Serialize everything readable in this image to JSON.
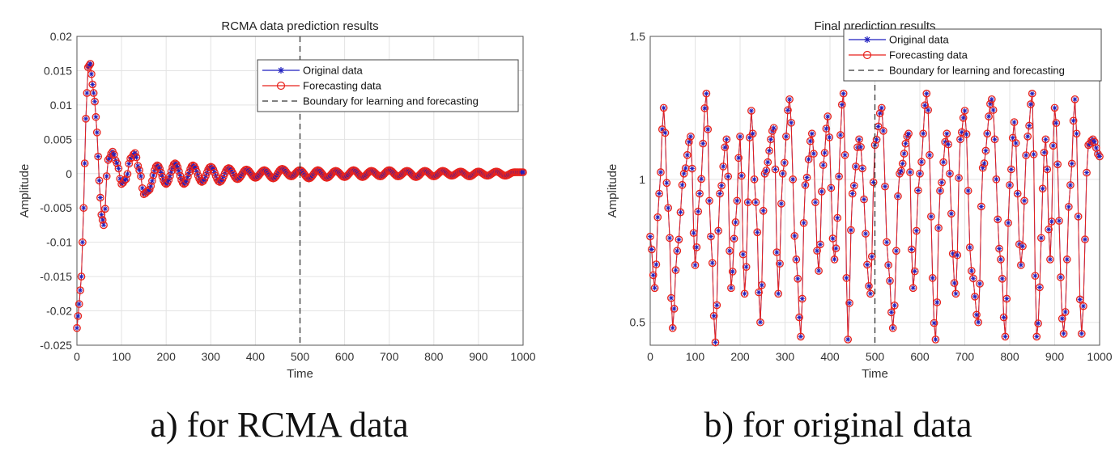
{
  "captions": {
    "a": "a)  for  RCMA  data",
    "b": "b)  for  original  data"
  },
  "chart_data": [
    {
      "type": "line",
      "title": "RCMA data prediction results",
      "xlabel": "Time",
      "ylabel": "Amplitude",
      "xlim": [
        0,
        1000
      ],
      "ylim": [
        -0.025,
        0.02
      ],
      "xticks": [
        "0",
        "100",
        "200",
        "300",
        "400",
        "500",
        "600",
        "700",
        "800",
        "900",
        "1000"
      ],
      "yticks": [
        "0.02",
        "0.015",
        "0.01",
        "0.005",
        "0",
        "-0.005",
        "-0.01",
        "-0.015",
        "-0.02",
        "-0.025"
      ],
      "grid": true,
      "legend_position": "top-right",
      "boundary_x": 500,
      "series": [
        {
          "name": "Original data",
          "color": "#1f1fbf",
          "marker": "asterisk",
          "line": "solid"
        },
        {
          "name": "Forecasting data",
          "color": "#e8221c",
          "marker": "circle",
          "line": "solid"
        },
        {
          "name": "Boundary for learning and forecasting",
          "color": "#333333",
          "line": "dashed"
        }
      ],
      "x": [
        0,
        5,
        10,
        15,
        20,
        25,
        30,
        35,
        40,
        45,
        50,
        55,
        60,
        70,
        80,
        90,
        100,
        110,
        120,
        130,
        140,
        150,
        160,
        180,
        200,
        220,
        240,
        260,
        280,
        300,
        320,
        340,
        360,
        380,
        400,
        420,
        440,
        460,
        480,
        500,
        520,
        540,
        560,
        580,
        600,
        620,
        640,
        660,
        680,
        700,
        720,
        740,
        760,
        780,
        800,
        820,
        840,
        860,
        880,
        900,
        920,
        940,
        960,
        980,
        1000
      ],
      "y": [
        -0.0225,
        -0.019,
        -0.015,
        -0.005,
        0.008,
        0.0155,
        0.016,
        0.013,
        0.0105,
        0.006,
        -0.001,
        -0.006,
        -0.0075,
        0.002,
        0.0032,
        0.0015,
        -0.0015,
        -0.0008,
        0.0022,
        0.003,
        0.0005,
        -0.003,
        -0.0025,
        0.0012,
        -0.0015,
        0.0015,
        -0.0015,
        0.0012,
        -0.0012,
        0.001,
        -0.0012,
        0.0008,
        -0.0008,
        0.0006,
        -0.0006,
        0.0005,
        -0.0007,
        0.0007,
        -0.0004,
        0.0005,
        -0.0007,
        0.0005,
        -0.0006,
        0.0004,
        -0.0005,
        0.0005,
        -0.0005,
        0.0004,
        -0.0004,
        0.0005,
        -0.0004,
        0.0004,
        -0.0005,
        0.0004,
        -0.0004,
        0.0004,
        -0.0003,
        0.0003,
        -0.0004,
        0.0003,
        -0.0003,
        0.0003,
        -0.0003,
        0.0002,
        0.0002
      ]
    },
    {
      "type": "line",
      "title": "Final prediction results",
      "xlabel": "Time",
      "ylabel": "Amplitude",
      "xlim": [
        0,
        1000
      ],
      "ylim": [
        0.42,
        1.5
      ],
      "xticks": [
        "0",
        "100",
        "200",
        "300",
        "400",
        "500",
        "600",
        "700",
        "800",
        "900",
        "1000"
      ],
      "yticks": [
        "1.5",
        "1",
        "0.5"
      ],
      "grid": true,
      "legend_position": "top-right",
      "boundary_x": 500,
      "series": [
        {
          "name": "Original data",
          "color": "#1f1fbf",
          "marker": "asterisk",
          "line": "solid"
        },
        {
          "name": "Forecasting data",
          "color": "#e8221c",
          "marker": "circle",
          "line": "solid"
        },
        {
          "name": "Boundary for learning and forecasting",
          "color": "#333333",
          "line": "dashed"
        }
      ],
      "x": [
        0,
        10,
        20,
        30,
        40,
        50,
        60,
        75,
        90,
        100,
        110,
        125,
        135,
        145,
        155,
        170,
        180,
        190,
        200,
        210,
        225,
        235,
        245,
        255,
        275,
        285,
        295,
        310,
        325,
        335,
        345,
        360,
        375,
        385,
        395,
        410,
        430,
        440,
        450,
        465,
        490,
        500,
        515,
        530,
        540,
        555,
        575,
        585,
        600,
        615,
        635,
        645,
        660,
        680,
        690,
        700,
        715,
        730,
        740,
        760,
        780,
        790,
        800,
        810,
        825,
        840,
        850,
        860,
        880,
        890,
        900,
        920,
        935,
        945,
        960,
        975,
        985,
        1000
      ],
      "y": [
        0.8,
        0.62,
        0.95,
        1.25,
        0.9,
        0.48,
        0.75,
        1.02,
        1.15,
        0.7,
        0.95,
        1.3,
        0.8,
        0.43,
        0.95,
        1.14,
        0.62,
        0.85,
        1.15,
        0.6,
        1.24,
        0.92,
        0.5,
        1.02,
        1.18,
        0.6,
        1.02,
        1.28,
        0.72,
        0.45,
        0.98,
        1.16,
        0.68,
        1.05,
        1.22,
        0.72,
        1.3,
        0.44,
        0.95,
        1.14,
        0.6,
        1.12,
        1.25,
        0.7,
        0.48,
        1.02,
        1.16,
        0.62,
        1.02,
        1.3,
        0.44,
        0.96,
        1.16,
        0.6,
        1.14,
        1.24,
        0.68,
        0.5,
        1.04,
        1.28,
        0.72,
        0.45,
        0.98,
        1.2,
        0.7,
        1.15,
        1.3,
        0.45,
        1.14,
        0.72,
        1.25,
        0.46,
        0.98,
        1.28,
        0.46,
        1.12,
        1.14,
        1.08
      ]
    }
  ]
}
